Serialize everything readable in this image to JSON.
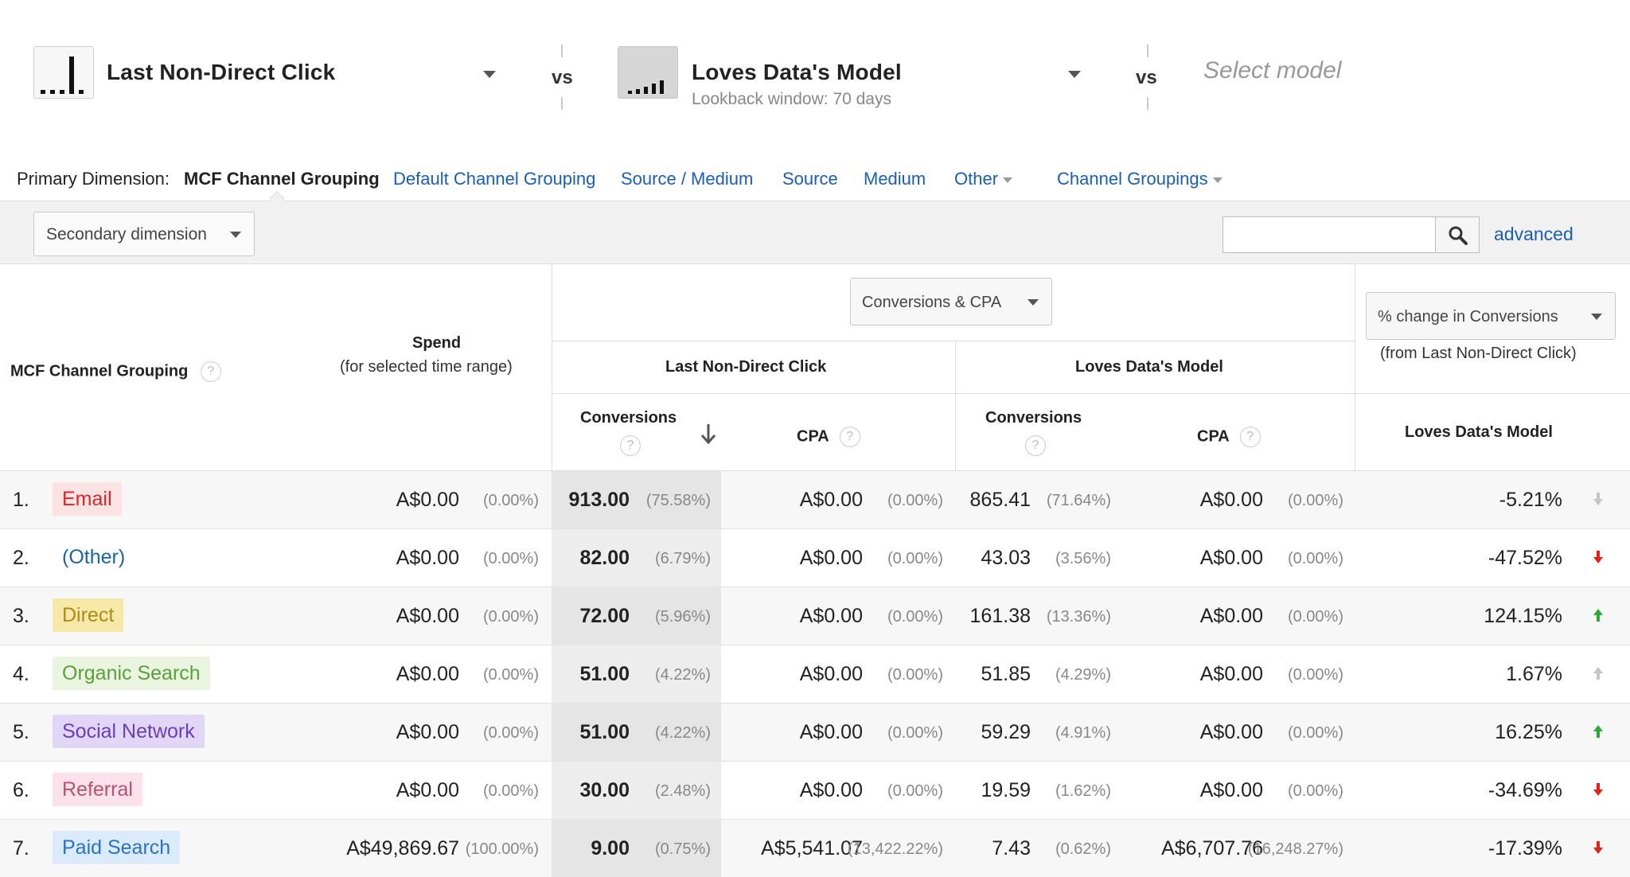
{
  "models": {
    "model1": {
      "name": "Last Non-Direct Click"
    },
    "vs1": "vs",
    "model2": {
      "name": "Loves Data's Model",
      "subtitle": "Lookback window: 70 days"
    },
    "vs2": "vs",
    "model3": {
      "placeholder": "Select model"
    }
  },
  "primary_dimension": {
    "label": "Primary Dimension:",
    "active": "MCF Channel Grouping",
    "links": [
      "Default Channel Grouping",
      "Source / Medium",
      "Source",
      "Medium",
      "Other",
      "Channel Groupings"
    ]
  },
  "toolbar": {
    "secondary_dimension": "Secondary dimension",
    "search_value": "",
    "advanced": "advanced"
  },
  "table": {
    "col_channel": "MCF Channel Grouping",
    "col_spend": "Spend",
    "col_spend_sub": "(for selected time range)",
    "metric_dropdown": "Conversions & CPA",
    "group1": "Last Non-Direct Click",
    "group2": "Loves Data's Model",
    "col_conversions": "Conversions",
    "col_cpa": "CPA",
    "compare_dropdown": "% change in Conversions",
    "compare_sub": "(from Last Non-Direct Click)",
    "compare_col": "Loves Data's Model",
    "help": "?",
    "rows": [
      {
        "rank": "1.",
        "channel": "Email",
        "spend": "A$0.00",
        "spend_pct": "(0.00%)",
        "conv1": "913.00",
        "conv1_pct": "(75.58%)",
        "cpa1": "A$0.00",
        "cpa1_pct": "(0.00%)",
        "conv2": "865.41",
        "conv2_pct": "(71.64%)",
        "cpa2": "A$0.00",
        "cpa2_pct": "(0.00%)",
        "change": "-5.21%",
        "trend": "down-neutral"
      },
      {
        "rank": "2.",
        "channel": "(Other)",
        "spend": "A$0.00",
        "spend_pct": "(0.00%)",
        "conv1": "82.00",
        "conv1_pct": "(6.79%)",
        "cpa1": "A$0.00",
        "cpa1_pct": "(0.00%)",
        "conv2": "43.03",
        "conv2_pct": "(3.56%)",
        "cpa2": "A$0.00",
        "cpa2_pct": "(0.00%)",
        "change": "-47.52%",
        "trend": "down"
      },
      {
        "rank": "3.",
        "channel": "Direct",
        "spend": "A$0.00",
        "spend_pct": "(0.00%)",
        "conv1": "72.00",
        "conv1_pct": "(5.96%)",
        "cpa1": "A$0.00",
        "cpa1_pct": "(0.00%)",
        "conv2": "161.38",
        "conv2_pct": "(13.36%)",
        "cpa2": "A$0.00",
        "cpa2_pct": "(0.00%)",
        "change": "124.15%",
        "trend": "up"
      },
      {
        "rank": "4.",
        "channel": "Organic Search",
        "spend": "A$0.00",
        "spend_pct": "(0.00%)",
        "conv1": "51.00",
        "conv1_pct": "(4.22%)",
        "cpa1": "A$0.00",
        "cpa1_pct": "(0.00%)",
        "conv2": "51.85",
        "conv2_pct": "(4.29%)",
        "cpa2": "A$0.00",
        "cpa2_pct": "(0.00%)",
        "change": "1.67%",
        "trend": "up-neutral"
      },
      {
        "rank": "5.",
        "channel": "Social Network",
        "spend": "A$0.00",
        "spend_pct": "(0.00%)",
        "conv1": "51.00",
        "conv1_pct": "(4.22%)",
        "cpa1": "A$0.00",
        "cpa1_pct": "(0.00%)",
        "conv2": "59.29",
        "conv2_pct": "(4.91%)",
        "cpa2": "A$0.00",
        "cpa2_pct": "(0.00%)",
        "change": "16.25%",
        "trend": "up"
      },
      {
        "rank": "6.",
        "channel": "Referral",
        "spend": "A$0.00",
        "spend_pct": "(0.00%)",
        "conv1": "30.00",
        "conv1_pct": "(2.48%)",
        "cpa1": "A$0.00",
        "cpa1_pct": "(0.00%)",
        "conv2": "19.59",
        "conv2_pct": "(1.62%)",
        "cpa2": "A$0.00",
        "cpa2_pct": "(0.00%)",
        "change": "-34.69%",
        "trend": "down"
      },
      {
        "rank": "7.",
        "channel": "Paid Search",
        "spend": "A$49,869.67",
        "spend_pct": "(100.00%)",
        "conv1": "9.00",
        "conv1_pct": "(0.75%)",
        "cpa1": "A$5,541.07",
        "cpa1_pct": "(13,422.22%)",
        "conv2": "7.43",
        "conv2_pct": "(0.62%)",
        "cpa2": "A$6,707.76",
        "cpa2_pct": "(16,248.27%)",
        "change": "-17.39%",
        "trend": "down"
      }
    ]
  },
  "colors": {
    "link": "#1a5fb4",
    "arrow_up": "#2eaa3a",
    "arrow_down": "#e0211b",
    "arrow_neutral": "#c4c4c4",
    "channels": {
      "Email": {
        "bg": "#fbe3e3",
        "fg": "#d8262b"
      },
      "(Other)": {
        "bg": "transparent",
        "fg": "#1a63a8"
      },
      "Direct": {
        "bg": "#f5e8a8",
        "fg": "#b08a16"
      },
      "Organic Search": {
        "bg": "#eaf5e0",
        "fg": "#5ba03a"
      },
      "Social Network": {
        "bg": "#e1d6f6",
        "fg": "#6a3fb8"
      },
      "Referral": {
        "bg": "#fbe1ea",
        "fg": "#b7546e"
      },
      "Paid Search": {
        "bg": "#dcebfb",
        "fg": "#2a73c4"
      }
    }
  }
}
